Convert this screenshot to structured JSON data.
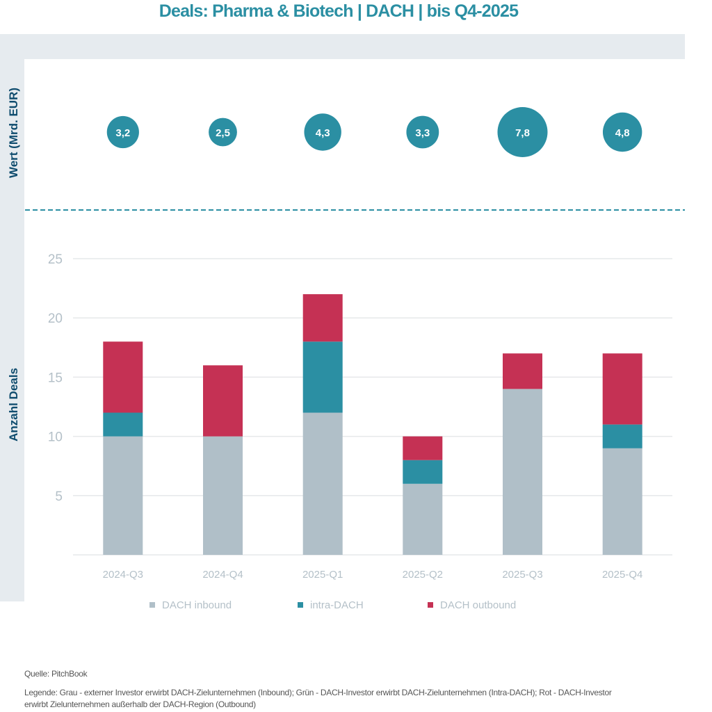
{
  "title": "Deals: Pharma & Biotech | DACH | bis Q4-2025",
  "labels": {
    "value_axis": "Wert (Mrd. EUR)",
    "count_axis": "Anzahl Deals"
  },
  "footer": {
    "source": "Quelle: PitchBook",
    "legend_note": "Legende: Grau - externer Investor erwirbt DACH-Zielunternehmen (Inbound); Grün - DACH-Investor erwirbt DACH-Zielunternehmen (Intra-DACH); Rot - DACH-Investor erwirbt Zielunternehmen außerhalb der DACH-Region (Outbound)"
  },
  "colors": {
    "accent": "#2b8fa3",
    "inbound": "#b0bfc8",
    "intra": "#2b8fa3",
    "outbound": "#c53154",
    "axis_text": "#b4c0c8",
    "grid": "#e6e8ea"
  },
  "chart_data": [
    {
      "type": "scatter",
      "subtype": "bubble",
      "title": "Wert (Mrd. EUR)",
      "categories": [
        "2024-Q3",
        "2024-Q4",
        "2025-Q1",
        "2025-Q2",
        "2025-Q3",
        "2025-Q4"
      ],
      "values": [
        3.2,
        2.5,
        4.3,
        3.3,
        7.8,
        4.8
      ],
      "value_labels": [
        "3,2",
        "2,5",
        "4,3",
        "3,3",
        "7,8",
        "4,8"
      ],
      "ylabel": "Wert (Mrd. EUR)"
    },
    {
      "type": "bar",
      "stacked": true,
      "categories": [
        "2024-Q3",
        "2024-Q4",
        "2025-Q1",
        "2025-Q2",
        "2025-Q3",
        "2025-Q4"
      ],
      "series": [
        {
          "name": "DACH inbound",
          "key": "inbound",
          "values": [
            10,
            10,
            12,
            6,
            14,
            9
          ]
        },
        {
          "name": "intra-DACH",
          "key": "intra",
          "values": [
            2,
            0,
            6,
            2,
            0,
            2
          ]
        },
        {
          "name": "DACH outbound",
          "key": "outbound",
          "values": [
            6,
            6,
            4,
            2,
            3,
            6
          ]
        }
      ],
      "xlabel": "",
      "ylabel": "Anzahl Deals",
      "ylim": [
        0,
        25
      ],
      "yticks": [
        5,
        10,
        15,
        20,
        25
      ],
      "grid": true,
      "legend": "bottom-center"
    }
  ]
}
